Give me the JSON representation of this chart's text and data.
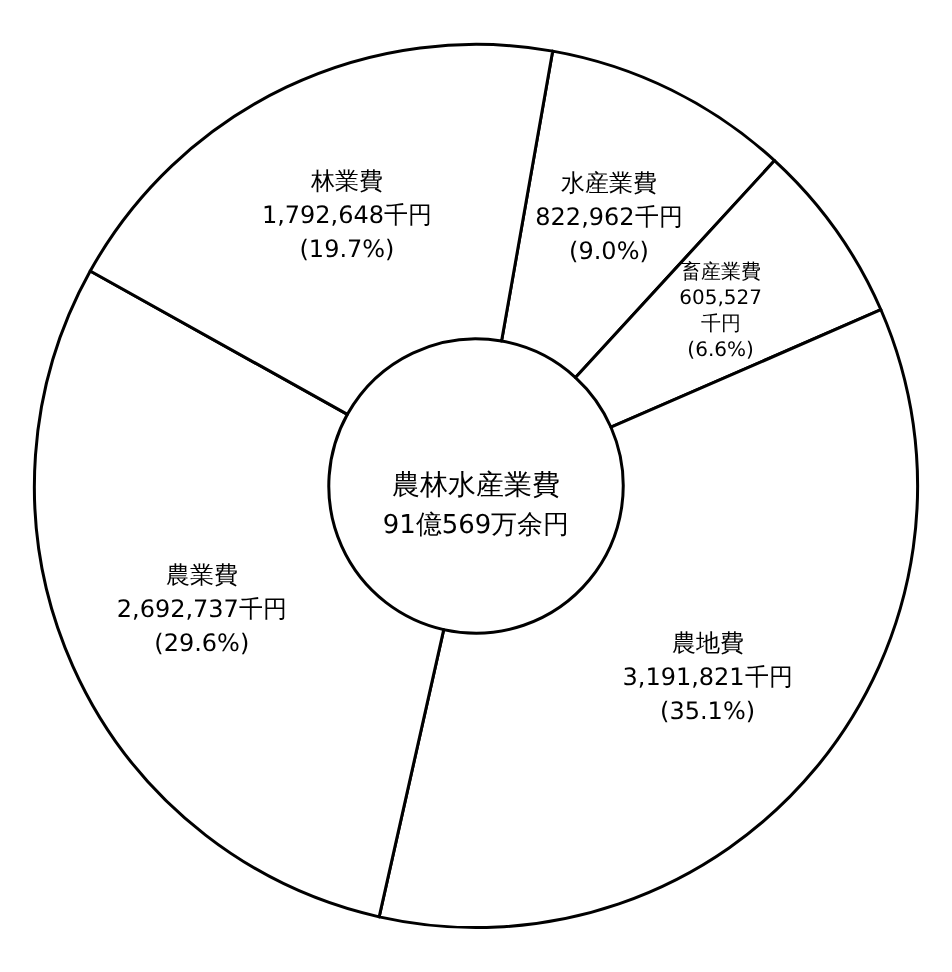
{
  "chart_data": {
    "type": "donut",
    "title": "農林水産業費",
    "subtitle": "91億569万余円",
    "categories": [
      "水産業費",
      "畜産業費",
      "農地費",
      "農業費",
      "林業費"
    ],
    "values": [
      822962,
      605527,
      3191821,
      2692737,
      1792648
    ],
    "value_labels": [
      "822,962千円\n(9.0%)",
      "605,527\n千円\n(6.6%)",
      "3,191,821千円\n(35.1%)",
      "2,692,737千円\n(29.6%)",
      "1,792,648千円\n(19.7%)"
    ],
    "colors": [
      "#ffffff",
      "#ffffff",
      "#ffffff",
      "#ffffff",
      "#ffffff"
    ],
    "legend": false
  }
}
